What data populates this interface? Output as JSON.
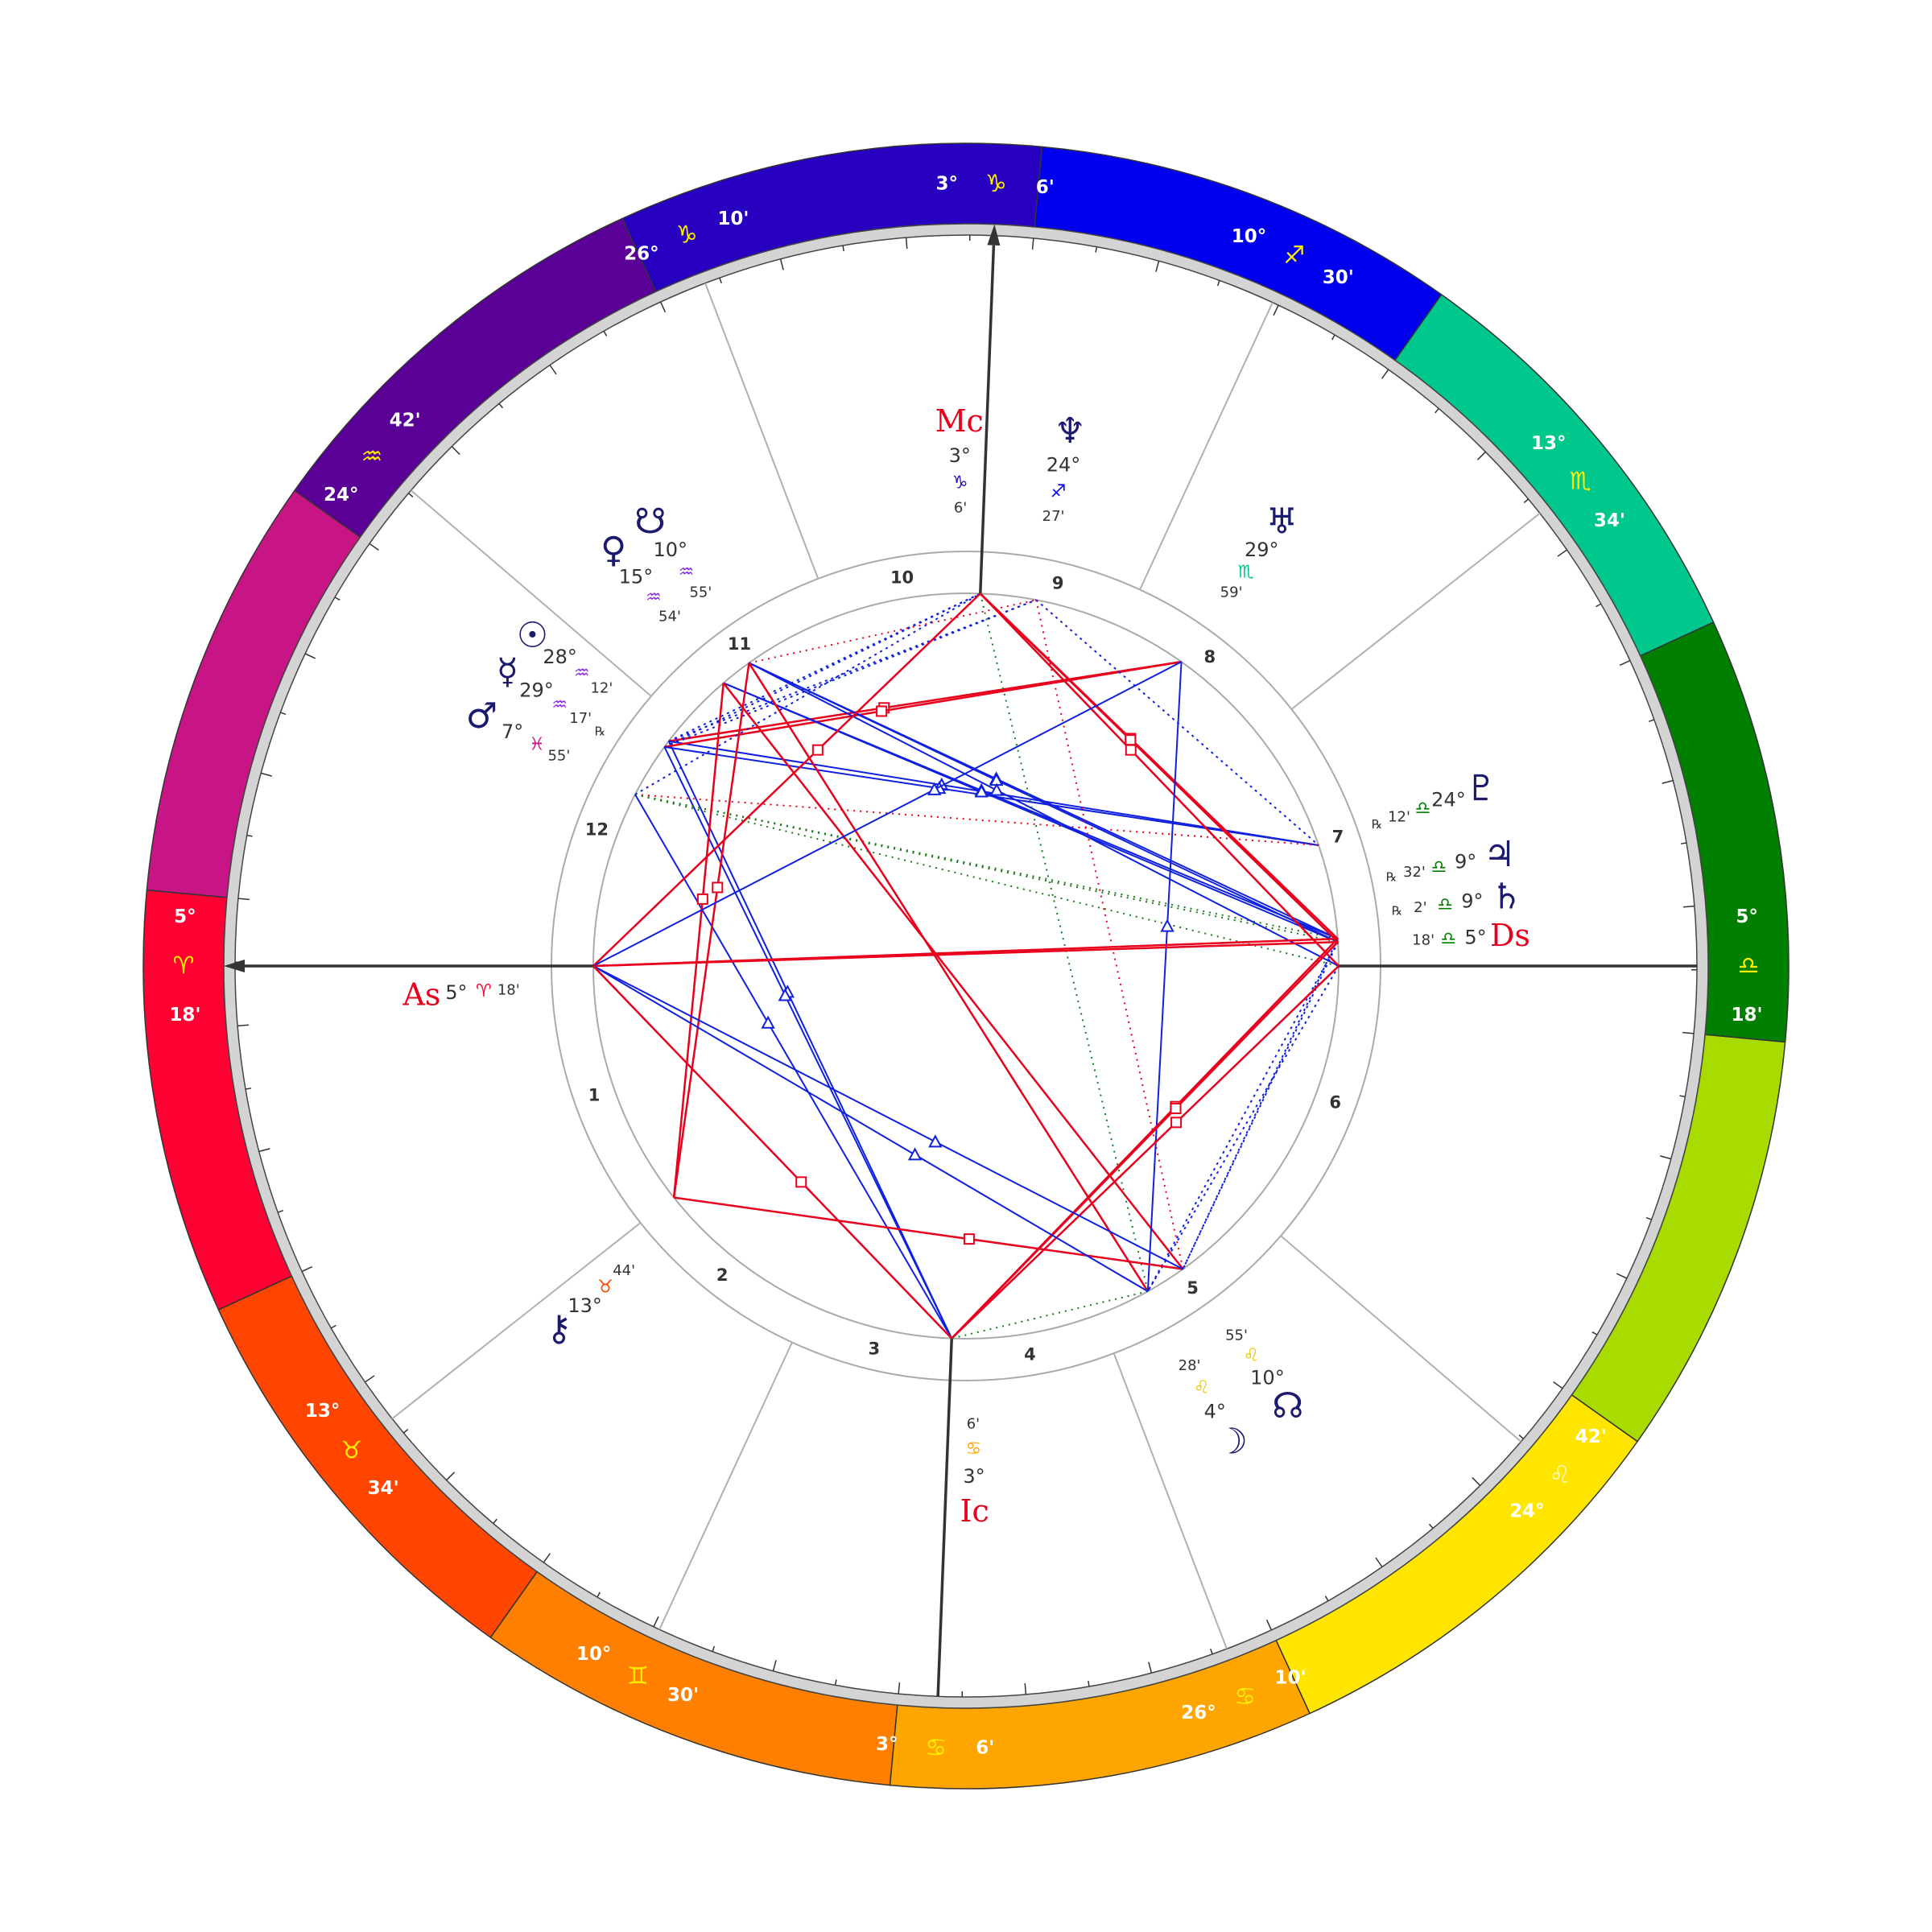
{
  "zodiac_colors": [
    "#ff0033",
    "#ff4500",
    "#ff8000",
    "#ffa500",
    "#ffe500",
    "#a8dc00",
    "#007f00",
    "#00c78c",
    "#0000ee",
    "#2800c0",
    "#5a0096",
    "#c71585"
  ],
  "cusps": [
    {
      "house": "1",
      "degree": "5°",
      "sign": "♈",
      "minutes": "18'"
    },
    {
      "house": "2",
      "degree": "13°",
      "sign": "♉",
      "minutes": "34'"
    },
    {
      "house": "3",
      "degree": "10°",
      "sign": "♊",
      "minutes": "30'"
    },
    {
      "house": "4",
      "degree": "3°",
      "sign": "♋",
      "minutes": "6'"
    },
    {
      "house": "5",
      "degree": "26°",
      "sign": "♋",
      "minutes": "10'"
    },
    {
      "house": "6",
      "degree": "24°",
      "sign": "♌",
      "minutes": "42'"
    },
    {
      "house": "7",
      "degree": "5°",
      "sign": "♎",
      "minutes": "18'"
    },
    {
      "house": "8",
      "degree": "13°",
      "sign": "♏",
      "minutes": "34'"
    },
    {
      "house": "9",
      "degree": "10°",
      "sign": "♐",
      "minutes": "30'"
    },
    {
      "house": "10",
      "degree": "3°",
      "sign": "♑",
      "minutes": "6'"
    },
    {
      "house": "11",
      "degree": "26°",
      "sign": "♑",
      "minutes": "10'"
    },
    {
      "house": "12",
      "degree": "24°",
      "sign": "♒",
      "minutes": "42'"
    }
  ],
  "points": [
    {
      "glyph": "☉",
      "degree": "28°",
      "sign": "♒",
      "minutes": "12'",
      "color": "#1a1a6e",
      "sign_color": "#8a2be2"
    },
    {
      "glyph": "☿",
      "degree": "29°",
      "sign": "♒",
      "minutes": "17'",
      "retrograde": "℞",
      "color": "#1a1a6e",
      "sign_color": "#8a2be2"
    },
    {
      "glyph": "♂",
      "degree": "7°",
      "sign": "♓",
      "minutes": "55'",
      "color": "#1a1a6e",
      "sign_color": "#c71585"
    },
    {
      "glyph": "♀",
      "degree": "15°",
      "sign": "♒",
      "minutes": "54'",
      "color": "#1a1a6e",
      "sign_color": "#8a2be2"
    },
    {
      "glyph": "☋",
      "degree": "10°",
      "sign": "♒",
      "minutes": "55'",
      "color": "#1a1a6e",
      "sign_color": "#8a2be2"
    },
    {
      "glyph": "Mc",
      "degree": "3°",
      "sign": "♑",
      "minutes": "6'",
      "color": "#e8001c",
      "sign_color": "#2800c0"
    },
    {
      "glyph": "♆",
      "degree": "24°",
      "sign": "♐",
      "minutes": "27'",
      "color": "#1a1a6e",
      "sign_color": "#0000ee"
    },
    {
      "glyph": "♅",
      "degree": "29°",
      "sign": "♏",
      "minutes": "59'",
      "color": "#1a1a6e",
      "sign_color": "#00c78c"
    },
    {
      "glyph": "♇",
      "degree": "24°",
      "sign": "♎",
      "minutes": "12'",
      "retrograde": "℞",
      "color": "#1a1a6e",
      "sign_color": "#007f00"
    },
    {
      "glyph": "♃",
      "degree": "9°",
      "sign": "♎",
      "minutes": "32'",
      "retrograde": "℞",
      "color": "#1a1a6e",
      "sign_color": "#007f00"
    },
    {
      "glyph": "♄",
      "degree": "9°",
      "sign": "♎",
      "minutes": "2'",
      "retrograde": "℞",
      "color": "#1a1a6e",
      "sign_color": "#007f00"
    },
    {
      "glyph": "Ds",
      "degree": "5°",
      "sign": "♎",
      "minutes": "18'",
      "color": "#e8001c",
      "sign_color": "#007f00"
    },
    {
      "glyph": "☊",
      "degree": "10°",
      "sign": "♌",
      "minutes": "55'",
      "color": "#1a1a6e",
      "sign_color": "#e6c800"
    },
    {
      "glyph": "☽",
      "degree": "4°",
      "sign": "♌",
      "minutes": "28'",
      "color": "#1a1a6e",
      "sign_color": "#e6c800"
    },
    {
      "glyph": "Ic",
      "degree": "3°",
      "sign": "♋",
      "minutes": "6'",
      "color": "#e8001c",
      "sign_color": "#ffa500"
    },
    {
      "glyph": "⚷",
      "degree": "13°",
      "sign": "♉",
      "minutes": "44'",
      "color": "#1a1a6e",
      "sign_color": "#ff4500"
    },
    {
      "glyph": "As",
      "degree": "5°",
      "sign": "♈",
      "minutes": "18'",
      "color": "#e8001c",
      "sign_color": "#ff0033"
    }
  ]
}
